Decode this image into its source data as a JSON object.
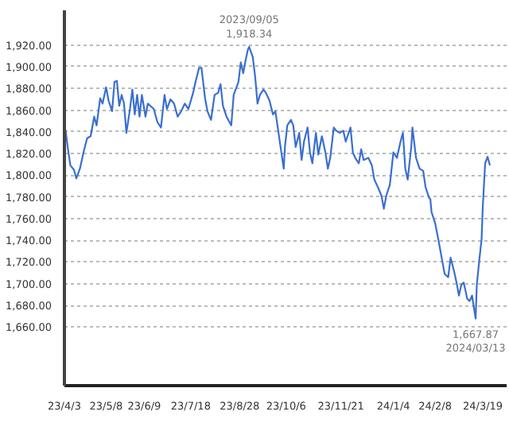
{
  "chart_data": {
    "type": "line",
    "xlim": [
      "2023-04-03",
      "2024-04-08"
    ],
    "ylim": [
      1606,
      1952
    ],
    "xticks": [
      {
        "value": "2023-04-03",
        "label": "23/4/3"
      },
      {
        "value": "2023-05-08",
        "label": "23/5/8"
      },
      {
        "value": "2023-06-09",
        "label": "23/6/9"
      },
      {
        "value": "2023-07-18",
        "label": "23/7/18"
      },
      {
        "value": "2023-08-28",
        "label": "23/8/28"
      },
      {
        "value": "2023-10-06",
        "label": "23/10/6"
      },
      {
        "value": "2023-11-21",
        "label": "23/11/21"
      },
      {
        "value": "2024-01-04",
        "label": "24/1/4"
      },
      {
        "value": "2024-02-08",
        "label": "24/2/8"
      },
      {
        "value": "2024-03-19",
        "label": "24/3/19"
      }
    ],
    "yticks": [
      {
        "value": 1660,
        "label": "1,660.00"
      },
      {
        "value": 1680,
        "label": "1,680.00"
      },
      {
        "value": 1700,
        "label": "1,700.00"
      },
      {
        "value": 1720,
        "label": "1,720.00"
      },
      {
        "value": 1740,
        "label": "1,740.00"
      },
      {
        "value": 1760,
        "label": "1,760.00"
      },
      {
        "value": 1780,
        "label": "1,780.00"
      },
      {
        "value": 1800,
        "label": "1,800.00"
      },
      {
        "value": 1820,
        "label": "1,820.00"
      },
      {
        "value": 1840,
        "label": "1,840.00"
      },
      {
        "value": 1860,
        "label": "1,860.00"
      },
      {
        "value": 1880,
        "label": "1,880.00"
      },
      {
        "value": 1900,
        "label": "1,900.00"
      },
      {
        "value": 1920,
        "label": "1,920.00"
      }
    ],
    "grid": true,
    "annotations": [
      {
        "text": "2023/09/05\n1,918.34",
        "x": "2023-09-05",
        "y": 1918.34
      },
      {
        "text": "1,667.87\n2024/03/13",
        "x": "2024-03-13",
        "y": 1667.87
      }
    ],
    "series": [
      {
        "color": "#3a6fd0",
        "x": [
          "2023-04-03",
          "2023-04-04",
          "2023-04-06",
          "2023-04-08",
          "2023-04-11",
          "2023-04-13",
          "2023-04-16",
          "2023-04-19",
          "2023-04-22",
          "2023-04-25",
          "2023-04-28",
          "2023-04-30",
          "2023-05-03",
          "2023-05-05",
          "2023-05-08",
          "2023-05-10",
          "2023-05-13",
          "2023-05-15",
          "2023-05-17",
          "2023-05-19",
          "2023-05-21",
          "2023-05-23",
          "2023-05-25",
          "2023-05-28",
          "2023-05-30",
          "2023-06-01",
          "2023-06-03",
          "2023-06-05",
          "2023-06-07",
          "2023-06-10",
          "2023-06-12",
          "2023-06-14",
          "2023-06-17",
          "2023-06-20",
          "2023-06-23",
          "2023-06-26",
          "2023-06-28",
          "2023-07-01",
          "2023-07-04",
          "2023-07-07",
          "2023-07-10",
          "2023-07-13",
          "2023-07-16",
          "2023-07-20",
          "2023-07-22",
          "2023-07-25",
          "2023-07-27",
          "2023-07-30",
          "2023-08-01",
          "2023-08-04",
          "2023-08-07",
          "2023-08-10",
          "2023-08-12",
          "2023-08-14",
          "2023-08-17",
          "2023-08-21",
          "2023-08-23",
          "2023-08-27",
          "2023-08-29",
          "2023-08-31",
          "2023-09-02",
          "2023-09-04",
          "2023-09-05",
          "2023-09-08",
          "2023-09-10",
          "2023-09-12",
          "2023-09-14",
          "2023-09-17",
          "2023-09-19",
          "2023-09-22",
          "2023-09-25",
          "2023-09-27",
          "2023-09-29",
          "2023-10-02",
          "2023-10-04",
          "2023-10-05",
          "2023-10-07",
          "2023-10-10",
          "2023-10-12",
          "2023-10-14",
          "2023-10-17",
          "2023-10-19",
          "2023-10-21",
          "2023-10-24",
          "2023-10-26",
          "2023-10-28",
          "2023-10-31",
          "2023-11-02",
          "2023-11-05",
          "2023-11-08",
          "2023-11-10",
          "2023-11-12",
          "2023-11-15",
          "2023-11-17",
          "2023-11-20",
          "2023-11-23",
          "2023-11-25",
          "2023-11-29",
          "2023-12-01",
          "2023-12-03",
          "2023-12-06",
          "2023-12-08",
          "2023-12-10",
          "2023-12-14",
          "2023-12-17",
          "2023-12-19",
          "2023-12-22",
          "2023-12-25",
          "2023-12-27",
          "2023-12-29",
          "2024-01-01",
          "2024-01-04",
          "2024-01-07",
          "2024-01-10",
          "2024-01-12",
          "2024-01-14",
          "2024-01-16",
          "2024-01-19",
          "2024-01-20",
          "2024-01-23",
          "2024-01-26",
          "2024-01-29",
          "2024-01-31",
          "2024-02-03",
          "2024-02-04",
          "2024-02-05",
          "2024-02-08",
          "2024-02-11",
          "2024-02-14",
          "2024-02-16",
          "2024-02-19",
          "2024-02-21",
          "2024-02-24",
          "2024-02-26",
          "2024-02-28",
          "2024-03-01",
          "2024-03-03",
          "2024-03-06",
          "2024-03-08",
          "2024-03-10",
          "2024-03-13",
          "2024-03-14",
          "2024-03-16",
          "2024-03-18",
          "2024-03-19",
          "2024-03-21",
          "2024-03-23",
          "2024-03-25"
        ],
        "values": [
          1844,
          1841,
          1824,
          1809,
          1805,
          1797,
          1806,
          1821,
          1834,
          1836,
          1854,
          1846,
          1871,
          1866,
          1881,
          1869,
          1859,
          1886,
          1887,
          1864,
          1874,
          1866,
          1839,
          1861,
          1879,
          1856,
          1874,
          1854,
          1874,
          1854,
          1866,
          1864,
          1861,
          1849,
          1844,
          1874,
          1861,
          1870,
          1866,
          1854,
          1859,
          1866,
          1861,
          1876,
          1886,
          1899,
          1899,
          1871,
          1859,
          1851,
          1874,
          1876,
          1884,
          1864,
          1854,
          1846,
          1874,
          1886,
          1904,
          1894,
          1906,
          1916,
          1918.34,
          1909,
          1891,
          1866,
          1874,
          1879,
          1876,
          1869,
          1856,
          1859,
          1844,
          1821,
          1806,
          1826,
          1846,
          1851,
          1846,
          1826,
          1839,
          1814,
          1831,
          1844,
          1821,
          1811,
          1839,
          1819,
          1836,
          1821,
          1806,
          1816,
          1844,
          1841,
          1839,
          1841,
          1831,
          1844,
          1821,
          1816,
          1811,
          1824,
          1814,
          1816,
          1809,
          1796,
          1789,
          1781,
          1769,
          1781,
          1791,
          1821,
          1816,
          1831,
          1839,
          1806,
          1796,
          1826,
          1844,
          1816,
          1806,
          1804,
          1789,
          1779,
          1778,
          1766,
          1756,
          1739,
          1721,
          1709,
          1706,
          1724,
          1711,
          1701,
          1689,
          1699,
          1701,
          1686,
          1684,
          1689,
          1667.87,
          1699,
          1721,
          1741,
          1771,
          1811,
          1817,
          1809
        ]
      }
    ]
  }
}
